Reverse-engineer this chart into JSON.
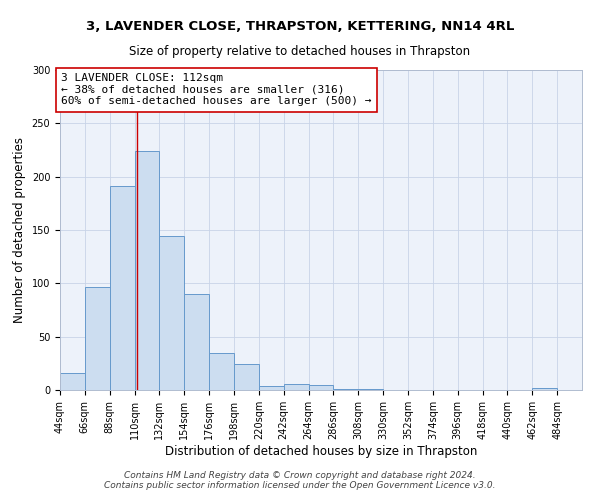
{
  "title": "3, LAVENDER CLOSE, THRAPSTON, KETTERING, NN14 4RL",
  "subtitle": "Size of property relative to detached houses in Thrapston",
  "xlabel": "Distribution of detached houses by size in Thrapston",
  "ylabel": "Number of detached properties",
  "bin_edges": [
    44,
    66,
    88,
    110,
    132,
    154,
    176,
    198,
    220,
    242,
    264,
    286,
    308,
    330,
    352,
    374,
    396,
    418,
    440,
    462,
    484
  ],
  "bin_heights": [
    16,
    97,
    191,
    224,
    144,
    90,
    35,
    24,
    4,
    6,
    5,
    1,
    1,
    0,
    0,
    0,
    0,
    0,
    0,
    2
  ],
  "bar_facecolor": "#ccddf0",
  "bar_edgecolor": "#6699cc",
  "vline_x": 112,
  "vline_color": "#cc0000",
  "annotation_text": "3 LAVENDER CLOSE: 112sqm\n← 38% of detached houses are smaller (316)\n60% of semi-detached houses are larger (500) →",
  "annotation_box_edgecolor": "#cc0000",
  "annotation_box_facecolor": "#ffffff",
  "ylim": [
    0,
    300
  ],
  "yticks": [
    0,
    50,
    100,
    150,
    200,
    250,
    300
  ],
  "footer_text": "Contains HM Land Registry data © Crown copyright and database right 2024.\nContains public sector information licensed under the Open Government Licence v3.0.",
  "background_color": "#edf2fa",
  "tick_labels": [
    "44sqm",
    "66sqm",
    "88sqm",
    "110sqm",
    "132sqm",
    "154sqm",
    "176sqm",
    "198sqm",
    "220sqm",
    "242sqm",
    "264sqm",
    "286sqm",
    "308sqm",
    "330sqm",
    "352sqm",
    "374sqm",
    "396sqm",
    "418sqm",
    "440sqm",
    "462sqm",
    "484sqm"
  ],
  "title_fontsize": 9.5,
  "subtitle_fontsize": 8.5,
  "xlabel_fontsize": 8.5,
  "ylabel_fontsize": 8.5,
  "tick_fontsize": 7,
  "annotation_fontsize": 8,
  "footer_fontsize": 6.5
}
